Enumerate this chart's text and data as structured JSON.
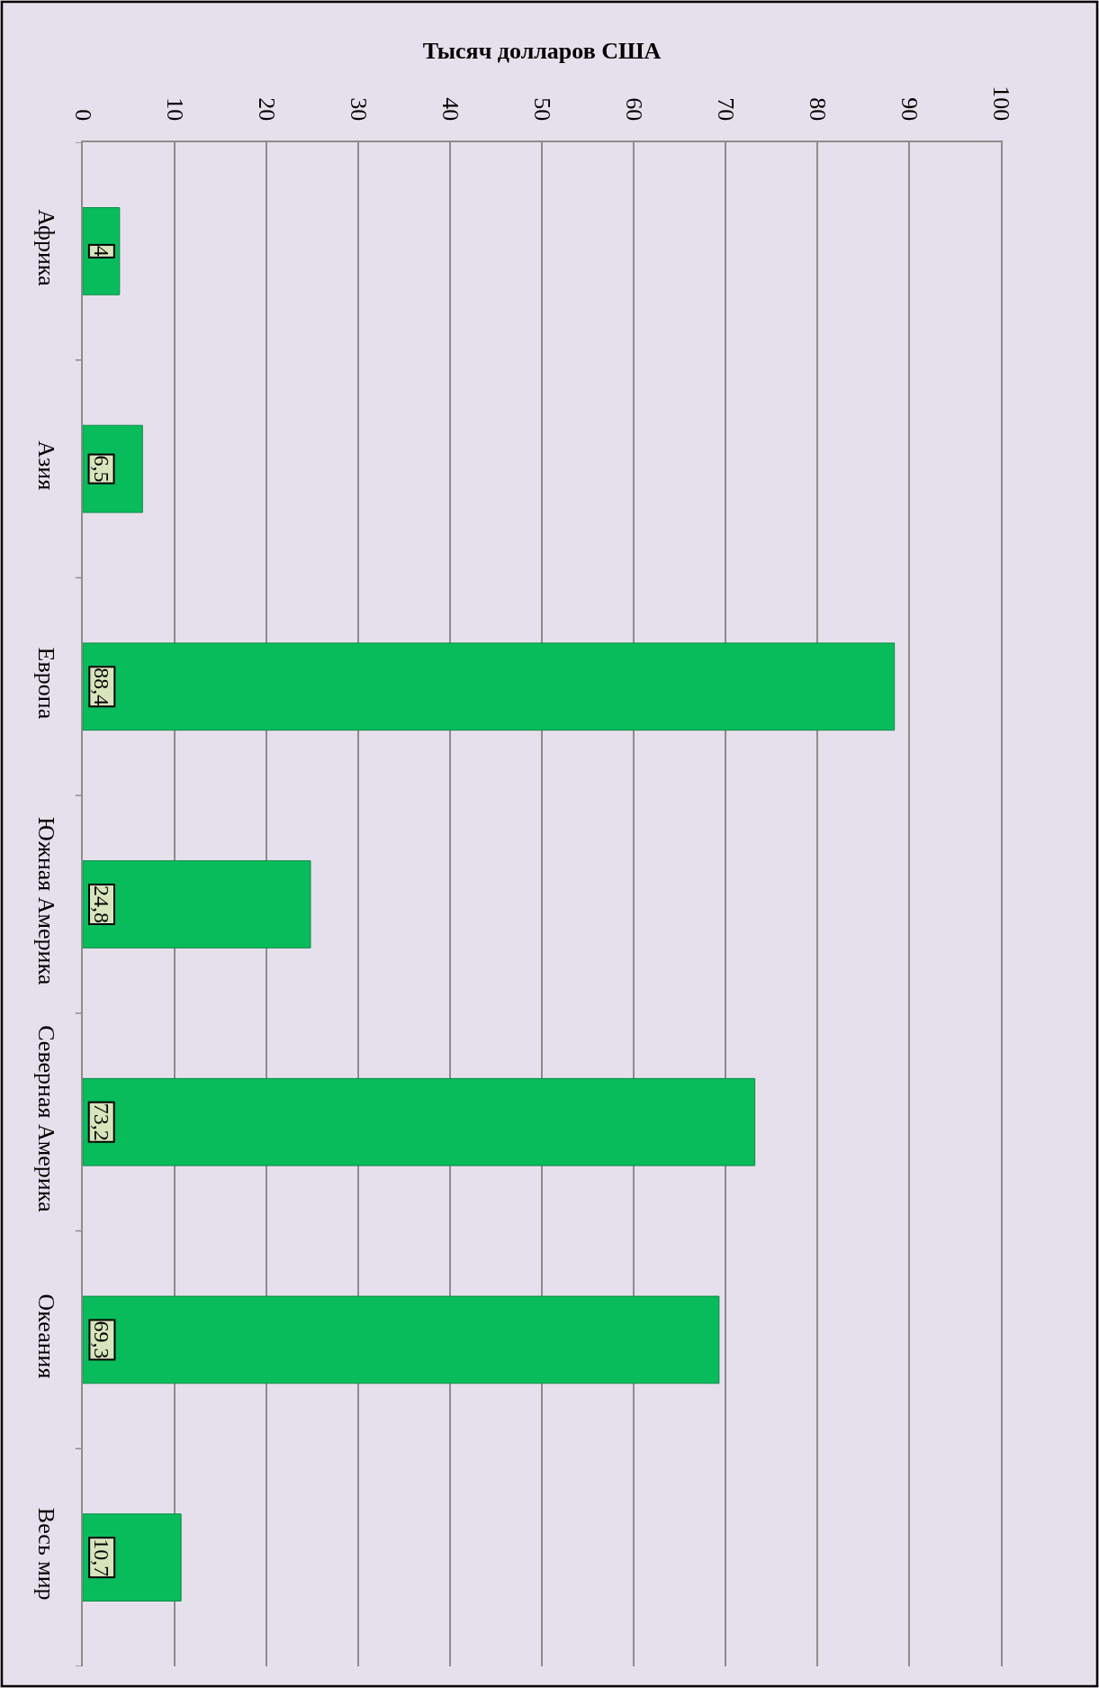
{
  "chart_data": {
    "type": "bar",
    "orientation": "horizontal",
    "xlabel": "Тысяч долларов США",
    "categories": [
      "Африка",
      "Азия",
      "Европа",
      "Южная Америка",
      "Северная Америка",
      "Океания",
      "Весь мир"
    ],
    "values": [
      4,
      6.5,
      88.4,
      24.8,
      73.2,
      69.3,
      10.7
    ],
    "color": "#08bc5c",
    "value_labels": [
      "4",
      "6,5",
      "88,4",
      "24,8",
      "73,2",
      "69,3",
      "10,7"
    ],
    "xlim": [
      0,
      100
    ],
    "xticks": [
      0,
      10,
      20,
      30,
      40,
      50,
      60,
      70,
      80,
      90,
      100
    ],
    "grid": "x"
  }
}
